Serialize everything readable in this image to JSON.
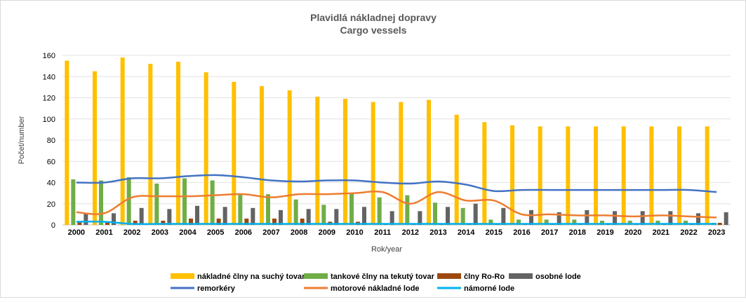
{
  "chart_data": {
    "type": "bar",
    "title": "Plavidlá nákladnej dopravy",
    "subtitle": "Cargo vessels",
    "xlabel": "Rok/year",
    "ylabel": "Počet/number",
    "ylim": [
      0,
      160
    ],
    "yticks": [
      0,
      20,
      40,
      60,
      80,
      100,
      120,
      140,
      160
    ],
    "grid": true,
    "legend_position": "bottom",
    "categories": [
      "2000",
      "2001",
      "2002",
      "2003",
      "2004",
      "2005",
      "2006",
      "2007",
      "2008",
      "2009",
      "2010",
      "2011",
      "2012",
      "2013",
      "2014",
      "2015",
      "2016",
      "2017",
      "2018",
      "2019",
      "2020",
      "2021",
      "2022",
      "2023"
    ],
    "bar_series": [
      {
        "name": "nákladné člny na suchý tovar",
        "color": "#FFC000",
        "values": [
          155,
          145,
          158,
          152,
          154,
          144,
          135,
          131,
          127,
          121,
          119,
          116,
          116,
          118,
          104,
          97,
          94,
          93,
          93,
          93,
          93,
          93,
          93,
          93
        ]
      },
      {
        "name": "tankové člny na tekutý tovar",
        "color": "#70AD47",
        "values": [
          43,
          42,
          45,
          39,
          44,
          42,
          29,
          29,
          24,
          19,
          30,
          26,
          28,
          21,
          16,
          5,
          5,
          5,
          5,
          4,
          4,
          4,
          4,
          2
        ]
      },
      {
        "name": "člny Ro-Ro",
        "color": "#9E480E",
        "values": [
          3,
          3,
          4,
          4,
          6,
          6,
          6,
          6,
          6,
          3,
          3,
          1,
          1,
          1,
          1,
          1,
          1,
          1,
          1,
          1,
          1,
          1,
          1,
          2
        ]
      },
      {
        "name": "osobné lode",
        "color": "#636363",
        "values": [
          11,
          11,
          16,
          15,
          18,
          17,
          16,
          14,
          15,
          15,
          17,
          13,
          13,
          17,
          20,
          16,
          14,
          12,
          14,
          13,
          13,
          13,
          11,
          12
        ]
      }
    ],
    "line_series": [
      {
        "name": "remorkéry",
        "color": "#4472C4",
        "values": [
          40,
          40,
          44,
          44,
          46,
          47,
          45,
          42,
          41,
          42,
          42,
          40,
          39,
          41,
          38,
          32,
          33,
          33,
          33,
          33,
          33,
          33,
          33,
          31
        ]
      },
      {
        "name": "motorové nákladné lode",
        "color": "#ED7D31",
        "values": [
          12,
          11,
          26,
          27,
          27,
          28,
          29,
          26,
          29,
          29,
          30,
          31,
          20,
          31,
          23,
          23,
          10,
          10,
          9,
          9,
          8,
          9,
          8,
          7
        ]
      },
      {
        "name": "námorné lode",
        "color": "#00B0F0",
        "values": [
          3,
          3,
          1,
          1,
          1,
          1,
          1,
          1,
          1,
          1,
          1,
          1,
          1,
          1,
          1,
          1,
          1,
          1,
          1,
          1,
          1,
          1,
          1,
          1
        ]
      }
    ]
  }
}
